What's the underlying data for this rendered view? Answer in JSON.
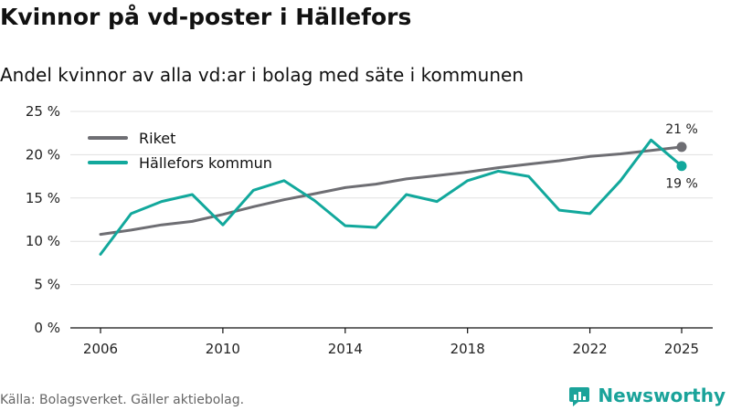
{
  "title": "Kvinnor på vd-poster i Hällefors",
  "subtitle": "Andel kvinnor av alla vd:ar i bolag med säte i kommunen",
  "source": "Källa: Bolagsverket. Gäller aktiebolag.",
  "brand": "Newsworthy",
  "colors": {
    "riket": "#6e6e73",
    "hallefors": "#12a89c",
    "grid": "#e0e0e0",
    "axis": "#111111"
  },
  "chart_data": {
    "type": "line",
    "title": "Kvinnor på vd-poster i Hällefors",
    "subtitle": "Andel kvinnor av alla vd:ar i bolag med säte i kommunen",
    "xlabel": "",
    "ylabel": "",
    "ylim": [
      0,
      25
    ],
    "xlim": [
      2006,
      2025
    ],
    "y_ticks": [
      0,
      5,
      10,
      15,
      20,
      25
    ],
    "y_tick_labels": [
      "0 %",
      "5 %",
      "10 %",
      "15 %",
      "20 %",
      "25 %"
    ],
    "x_ticks": [
      2006,
      2010,
      2014,
      2018,
      2022,
      2025
    ],
    "x_tick_labels": [
      "2006",
      "2010",
      "2014",
      "2018",
      "2022",
      "2025"
    ],
    "x": [
      2006,
      2007,
      2008,
      2009,
      2010,
      2011,
      2012,
      2013,
      2014,
      2015,
      2016,
      2017,
      2018,
      2019,
      2020,
      2021,
      2022,
      2023,
      2024,
      2025
    ],
    "legend_position": "top-left",
    "series": [
      {
        "name": "Riket",
        "color": "#6e6e73",
        "values": [
          10.8,
          11.3,
          11.9,
          12.3,
          13.1,
          14.0,
          14.8,
          15.5,
          16.2,
          16.6,
          17.2,
          17.6,
          18.0,
          18.5,
          18.9,
          19.3,
          19.8,
          20.1,
          20.5,
          20.9
        ],
        "end_label": "21 %"
      },
      {
        "name": "Hällefors kommun",
        "color": "#12a89c",
        "values": [
          8.5,
          13.2,
          14.6,
          15.4,
          11.9,
          15.9,
          17.0,
          14.7,
          11.8,
          11.6,
          15.4,
          14.6,
          17.0,
          18.1,
          17.5,
          13.6,
          13.2,
          17.0,
          21.7,
          18.7
        ],
        "end_label": "19 %"
      }
    ]
  }
}
